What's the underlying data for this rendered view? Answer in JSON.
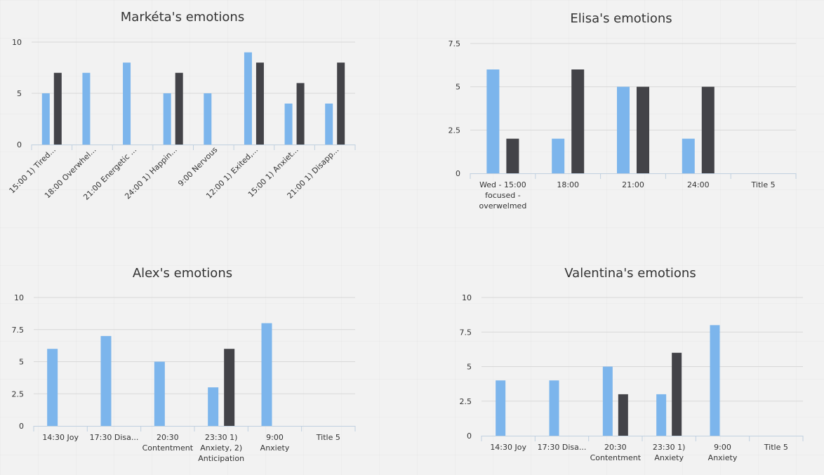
{
  "colors": {
    "series1": "#7cb5ec",
    "series2": "#434348"
  },
  "chart_data": [
    {
      "type": "bar",
      "title": "Markéta's emotions",
      "categories": [
        "15:00 1) Tired...",
        "18:00 Overwhel...",
        "21:00 Energetic ...",
        "24:00 1) Happin...",
        "9:00 Nervous",
        "12:00 1) Exited,...",
        "15:00 1) Anxiet...",
        "21:00 1) Disapp..."
      ],
      "category_lines": [
        [
          "15:00 1) Tired..."
        ],
        [
          "18:00 Overwhel..."
        ],
        [
          "21:00 Energetic ..."
        ],
        [
          "24:00 1) Happin..."
        ],
        [
          "9:00 Nervous"
        ],
        [
          "12:00 1) Exited,..."
        ],
        [
          "15:00 1) Anxiet..."
        ],
        [
          "21:00 1) Disapp..."
        ]
      ],
      "rotate_labels": true,
      "yticks": [
        "0",
        "5",
        "10"
      ],
      "ylim": [
        0,
        10
      ],
      "series": [
        {
          "values": [
            5,
            7,
            8,
            5,
            5,
            9,
            4,
            4
          ]
        },
        {
          "values": [
            7,
            null,
            null,
            7,
            null,
            8,
            6,
            8
          ]
        }
      ],
      "grid": true
    },
    {
      "type": "bar",
      "title": "Elisa's emotions",
      "categories": [
        "Wed - 15:00 focused - overwelmed",
        "18:00",
        "21:00",
        "24:00",
        "Title 5"
      ],
      "category_lines": [
        [
          "Wed - 15:00",
          "focused -",
          "overwelmed"
        ],
        [
          "18:00"
        ],
        [
          "21:00"
        ],
        [
          "24:00"
        ],
        [
          "Title 5"
        ]
      ],
      "rotate_labels": false,
      "yticks": [
        "0",
        "2.5",
        "5",
        "7.5"
      ],
      "ylim": [
        0,
        7.5
      ],
      "series": [
        {
          "values": [
            6,
            2,
            5,
            2,
            null
          ]
        },
        {
          "values": [
            2,
            6,
            5,
            5,
            null
          ]
        }
      ],
      "grid": true
    },
    {
      "type": "bar",
      "title": "Alex's emotions",
      "categories": [
        "14:30 Joy",
        "17:30 Disa...",
        "20:30 Contentment",
        "23:30 1) Anxiety, 2) Anticipation",
        "9:00 Anxiety",
        "Title 5"
      ],
      "category_lines": [
        [
          "14:30 Joy"
        ],
        [
          "17:30 Disa..."
        ],
        [
          "20:30",
          "Contentment"
        ],
        [
          "23:30 1)",
          "Anxiety, 2)",
          "Anticipation"
        ],
        [
          "9:00",
          "Anxiety"
        ],
        [
          "Title 5"
        ]
      ],
      "rotate_labels": false,
      "yticks": [
        "0",
        "2.5",
        "5",
        "7.5",
        "10"
      ],
      "ylim": [
        0,
        10
      ],
      "series": [
        {
          "values": [
            6,
            7,
            5,
            3,
            8,
            null
          ]
        },
        {
          "values": [
            null,
            null,
            null,
            6,
            null,
            null
          ]
        }
      ],
      "grid": true
    },
    {
      "type": "bar",
      "title": "Valentina's emotions",
      "categories": [
        "14:30 Joy",
        "17:30 Disa...",
        "20:30 Contentment",
        "23:30 1) Anxiety",
        "9:00 Anxiety",
        "Title 5"
      ],
      "category_lines": [
        [
          "14:30 Joy"
        ],
        [
          "17:30 Disa..."
        ],
        [
          "20:30",
          "Contentment"
        ],
        [
          "23:30 1)",
          "Anxiety"
        ],
        [
          "9:00",
          "Anxiety"
        ],
        [
          "Title 5"
        ]
      ],
      "rotate_labels": false,
      "yticks": [
        "0",
        "2.5",
        "5",
        "7.5",
        "10"
      ],
      "ylim": [
        0,
        10
      ],
      "series": [
        {
          "values": [
            4,
            4,
            5,
            3,
            8,
            null
          ]
        },
        {
          "values": [
            null,
            null,
            3,
            6,
            null,
            null
          ]
        }
      ],
      "grid": true
    }
  ]
}
